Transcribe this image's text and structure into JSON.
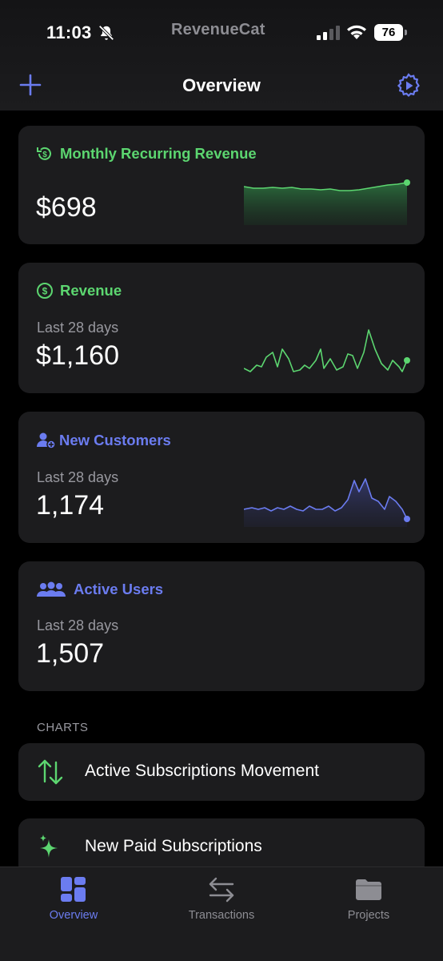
{
  "status_bar": {
    "time": "11:03",
    "brand": "RevenueCat",
    "battery": "76"
  },
  "nav": {
    "title": "Overview",
    "left_icon": "plus-icon",
    "right_icon": "gear-icon"
  },
  "cards": {
    "mrr": {
      "title": "Monthly Recurring Revenue",
      "value": "$698",
      "color": "#5cd670"
    },
    "revenue": {
      "title": "Revenue",
      "subtitle": "Last 28 days",
      "value": "$1,160",
      "color": "#5cd670"
    },
    "new_customers": {
      "title": "New Customers",
      "subtitle": "Last 28 days",
      "value": "1,174",
      "color": "#6b7cf0"
    },
    "active_users": {
      "title": "Active Users",
      "subtitle": "Last 28 days",
      "value": "1,507",
      "color": "#6b7cf0"
    }
  },
  "charts_section": {
    "label": "CHARTS",
    "items": [
      {
        "label": "Active Subscriptions Movement",
        "icon": "arrows-up-down-icon"
      },
      {
        "label": "New Paid Subscriptions",
        "icon": "sparkles-icon"
      }
    ]
  },
  "tabbar": {
    "items": [
      {
        "label": "Overview",
        "icon": "dashboard-icon",
        "active": true
      },
      {
        "label": "Transactions",
        "icon": "arrows-left-right-icon",
        "active": false
      },
      {
        "label": "Projects",
        "icon": "folder-icon",
        "active": false
      }
    ]
  },
  "colors": {
    "accent_green": "#5cd670",
    "accent_blue": "#6b7cf0",
    "card_bg": "#1c1c1e",
    "secondary_text": "#98989f"
  }
}
